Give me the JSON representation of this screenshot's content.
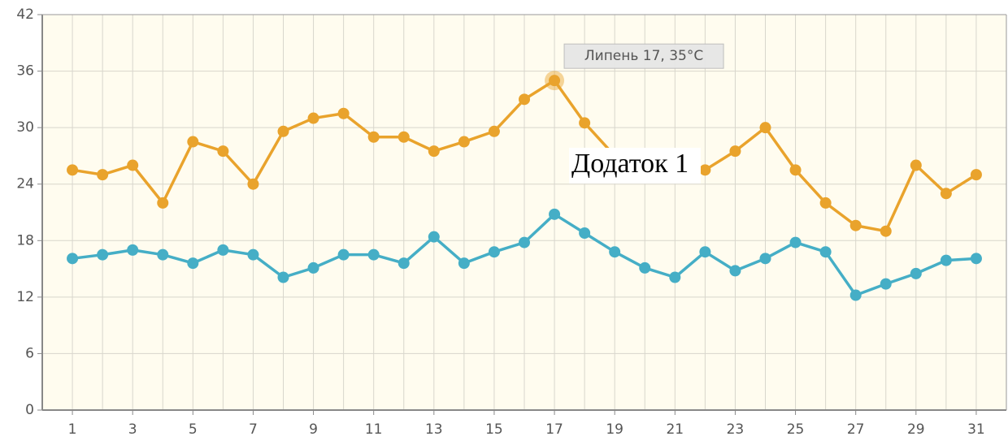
{
  "chart_data": {
    "type": "line",
    "x": [
      1,
      2,
      3,
      4,
      5,
      6,
      7,
      8,
      9,
      10,
      11,
      12,
      13,
      14,
      15,
      16,
      17,
      18,
      19,
      20,
      21,
      22,
      23,
      24,
      25,
      26,
      27,
      28,
      29,
      30,
      31
    ],
    "series": [
      {
        "color": "#e9a32c",
        "values": [
          25.5,
          25,
          26,
          22,
          28.5,
          27.5,
          24,
          29.6,
          31,
          31.5,
          29,
          29,
          27.5,
          28.5,
          29.6,
          33,
          35,
          30.5,
          27,
          25.5,
          26,
          25.5,
          27.5,
          30,
          25.5,
          22,
          19.6,
          19,
          26,
          23,
          25
        ]
      },
      {
        "color": "#45aec6",
        "values": [
          16.1,
          16.5,
          17,
          16.5,
          15.6,
          17,
          16.5,
          14.1,
          15.1,
          16.5,
          16.5,
          15.6,
          18.4,
          15.6,
          16.8,
          17.8,
          20.8,
          18.8,
          16.8,
          15.1,
          14.1,
          16.8,
          14.8,
          16.1,
          17.8,
          16.8,
          12.2,
          13.4,
          14.5,
          15.9,
          16.1
        ]
      }
    ],
    "xlim": [
      0,
      32
    ],
    "xticks": [
      1,
      3,
      5,
      7,
      9,
      11,
      13,
      15,
      17,
      19,
      21,
      23,
      25,
      27,
      29,
      31
    ],
    "ylim": [
      0,
      42
    ],
    "yticks": [
      0,
      6,
      12,
      18,
      24,
      30,
      36,
      42
    ],
    "grid": true,
    "tooltip": "Липень 17, 35°C",
    "annotation": "Додаток 1"
  }
}
